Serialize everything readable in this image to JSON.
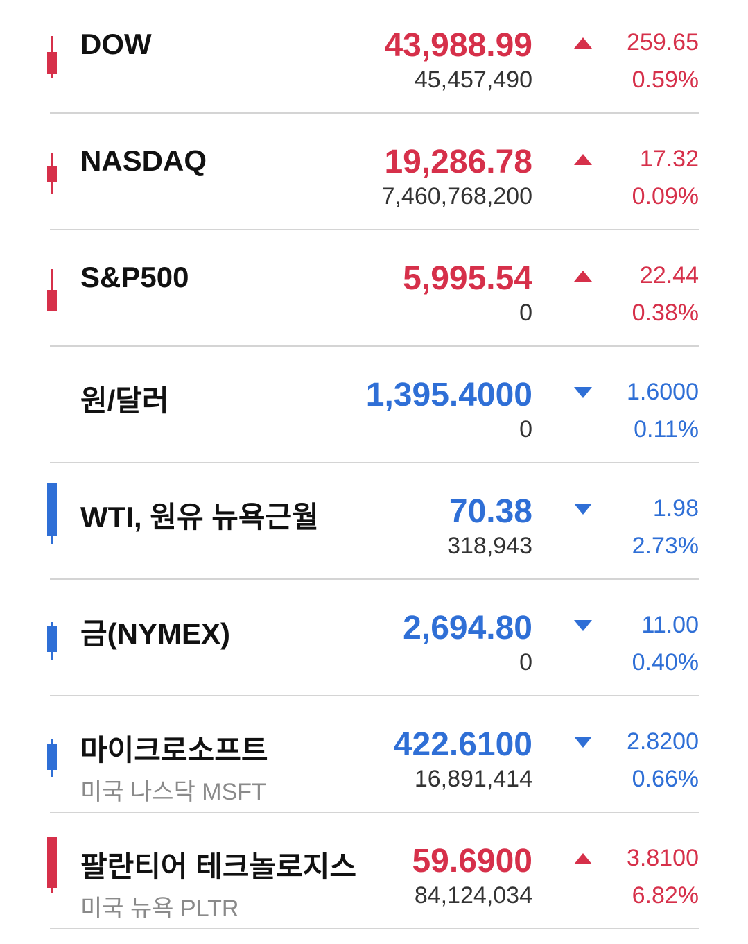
{
  "colors": {
    "up": "#d6304a",
    "down": "#2f6fd6"
  },
  "rows": [
    {
      "name": "DOW",
      "sub": "",
      "price": "43,988.99",
      "volume": "45,457,490",
      "direction": "up",
      "change": "259.65",
      "percent": "0.59%",
      "candle": "up"
    },
    {
      "name": "NASDAQ",
      "sub": "",
      "price": "19,286.78",
      "volume": "7,460,768,200",
      "direction": "up",
      "change": "17.32",
      "percent": "0.09%",
      "candle": "up"
    },
    {
      "name": "S&P500",
      "sub": "",
      "price": "5,995.54",
      "volume": "0",
      "direction": "up",
      "change": "22.44",
      "percent": "0.38%",
      "candle": "up"
    },
    {
      "name": "원/달러",
      "sub": "",
      "price": "1,395.4000",
      "volume": "0",
      "direction": "down",
      "change": "1.6000",
      "percent": "0.11%",
      "candle": "none"
    },
    {
      "name": "WTI, 원유 뉴욕근월",
      "sub": "",
      "price": "70.38",
      "volume": "318,943",
      "direction": "down",
      "change": "1.98",
      "percent": "2.73%",
      "candle": "down"
    },
    {
      "name": "금(NYMEX)",
      "sub": "",
      "price": "2,694.80",
      "volume": "0",
      "direction": "down",
      "change": "11.00",
      "percent": "0.40%",
      "candle": "down"
    },
    {
      "name": "마이크로소프트",
      "sub": "미국 나스닥 MSFT",
      "price": "422.6100",
      "volume": "16,891,414",
      "direction": "down",
      "change": "2.8200",
      "percent": "0.66%",
      "candle": "down"
    },
    {
      "name": "팔란티어 테크놀로지스",
      "sub": "미국 뉴욕 PLTR",
      "price": "59.6900",
      "volume": "84,124,034",
      "direction": "up",
      "change": "3.8100",
      "percent": "6.82%",
      "candle": "up"
    }
  ]
}
